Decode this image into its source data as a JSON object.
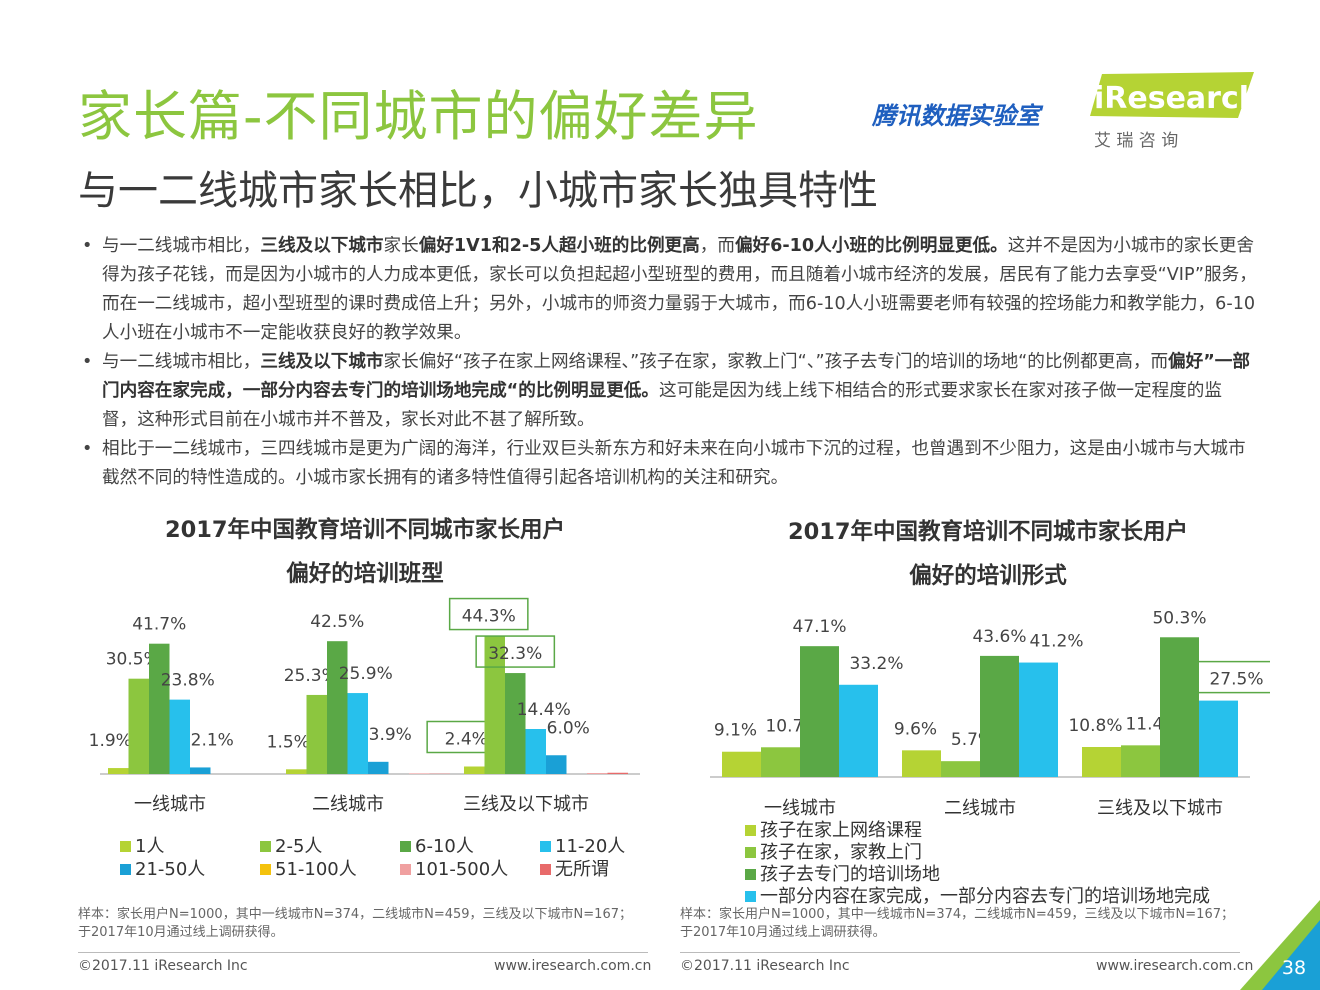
{
  "header": {
    "title": "家长篇-不同城市的偏好差异",
    "subtitle": "与一二线城市家长相比，小城市家长独具特性",
    "partner": "腾讯数据实验室",
    "logo_text": "iResearch",
    "logo_sub": "艾   瑞   咨   询"
  },
  "bullets": [
    {
      "dot": "•",
      "parts": [
        {
          "t": "与一二线城市相比，",
          "b": false
        },
        {
          "t": "三线及以下城市",
          "b": true
        },
        {
          "t": "家长",
          "b": false
        },
        {
          "t": "偏好1V1和2-5人超小班的比例更高",
          "b": true
        },
        {
          "t": "，而",
          "b": false
        },
        {
          "t": "偏好6-10人小班的比例明显更低。",
          "b": true
        },
        {
          "t": "这并不是因为小城市的家长更舍得为孩子花钱，而是因为小城市的人力成本更低，家长可以负担起超小型班型的费用，而且随着小城市经济的发展，居民有了能力去享受“VIP”服务，而在一二线城市，超小型班型的课时费成倍上升；另外，小城市的师资力量弱于大城市，而6-10人小班需要老师有较强的控场能力和教学能力，6-10人小班在小城市不一定能收获良好的教学效果。",
          "b": false
        }
      ]
    },
    {
      "dot": "•",
      "parts": [
        {
          "t": "与一二线城市相比，",
          "b": false
        },
        {
          "t": "三线及以下城市",
          "b": true
        },
        {
          "t": "家长偏好“孩子在家上网络课程、”孩子在家，家教上门“、”孩子去专门的培训的场地“的比例都更高，而",
          "b": false
        },
        {
          "t": "偏好”一部门内容在家完成，一部分内容去专门的培训场地完成“的比例明显更低。",
          "b": true
        },
        {
          "t": "这可能是因为线上线下相结合的形式要求家长在家对孩子做一定程度的监督，这种形式目前在小城市并不普及，家长对此不甚了解所致。",
          "b": false
        }
      ]
    },
    {
      "dot": "•",
      "parts": [
        {
          "t": "相比于一二线城市，三四线城市是更为广阔的海洋，行业双巨头新东方和好未来在向小城市下沉的过程，也曾遇到不少阻力，这是由小城市与大城市截然不同的特性造成的。小城市家长拥有的诸多特性值得引起各培训机构的关注和研究。",
          "b": false
        }
      ]
    }
  ],
  "chart_data": [
    {
      "type": "bar",
      "title": "2017年中国教育培训不同城市家长用户偏好的培训班型",
      "title_lines": [
        "2017年中国教育培训不同城市家长用户",
        "偏好的培训班型"
      ],
      "categories": [
        "一线城市",
        "二线城市",
        "三线及以下城市"
      ],
      "series": [
        {
          "name": "1人",
          "color": "#b5d334",
          "values": [
            1.9,
            1.5,
            2.4
          ],
          "labels": [
            "1.9%",
            "1.5%",
            "2.4%"
          ]
        },
        {
          "name": "2-5人",
          "color": "#8cc63f",
          "values": [
            30.5,
            25.3,
            44.3
          ],
          "labels": [
            "30.5%",
            "25.3%",
            "44.3%"
          ]
        },
        {
          "name": "6-10人",
          "color": "#5aa846",
          "values": [
            41.7,
            42.5,
            32.3
          ],
          "labels": [
            "41.7%",
            "42.5%",
            "32.3%"
          ]
        },
        {
          "name": "11-20人",
          "color": "#27c0ec",
          "values": [
            23.8,
            25.9,
            14.4
          ],
          "labels": [
            "23.8%",
            "25.9%",
            "14.4%"
          ]
        },
        {
          "name": "21-50人",
          "color": "#1aa0d6",
          "values": [
            2.1,
            3.9,
            6.0
          ],
          "labels": [
            "2.1%",
            "3.9%",
            "6.0%"
          ]
        },
        {
          "name": "51-100人",
          "color": "#f4c20d",
          "values": [
            0,
            0,
            0
          ],
          "labels": [
            "",
            "",
            ""
          ]
        },
        {
          "name": "101-500人",
          "color": "#f0a0a0",
          "values": [
            0,
            0.2,
            0.3
          ],
          "labels": [
            "",
            "",
            ""
          ]
        },
        {
          "name": "无所谓",
          "color": "#e86a6a",
          "values": [
            0,
            0.1,
            0.4
          ],
          "labels": [
            "",
            "",
            ""
          ]
        }
      ],
      "highlighted": [
        "1人 · 三线及以下城市",
        "2-5人 · 三线及以下城市",
        "6-10人 · 三线及以下城市"
      ],
      "ylim": [
        0,
        48
      ],
      "legend_position": "bottom",
      "note": "样本：家长用户N=1000，其中一线城市N=374，二线城市N=459，三线及以下城市N=167；于2017年10月通过线上调研获得。"
    },
    {
      "type": "bar",
      "title": "2017年中国教育培训不同城市家长用户偏好的培训形式",
      "title_lines": [
        "2017年中国教育培训不同城市家长用户",
        "偏好的培训形式"
      ],
      "categories": [
        "一线城市",
        "二线城市",
        "三线及以下城市"
      ],
      "series": [
        {
          "name": "孩子在家上网络课程",
          "color": "#b5d334",
          "values": [
            9.1,
            9.6,
            10.8
          ],
          "labels": [
            "9.1%",
            "9.6%",
            "10.8%"
          ]
        },
        {
          "name": "孩子在家，家教上门",
          "color": "#8cc63f",
          "values": [
            10.7,
            5.7,
            11.4
          ],
          "labels": [
            "10.7%",
            "5.7%",
            "11.4%"
          ]
        },
        {
          "name": "孩子去专门的培训场地",
          "color": "#5aa846",
          "values": [
            47.1,
            43.6,
            50.3
          ],
          "labels": [
            "47.1%",
            "43.6%",
            "50.3%"
          ]
        },
        {
          "name": "一部分内容在家完成，一部分内容去专门的培训场地完成",
          "color": "#27c0ec",
          "values": [
            33.2,
            41.2,
            27.5
          ],
          "labels": [
            "33.2%",
            "41.2%",
            "27.5%"
          ]
        }
      ],
      "highlighted": [
        "一部分内容在家完成，一部分内容去专门的培训场地完成 · 三线及以下城市"
      ],
      "ylim": [
        0,
        54
      ],
      "legend_position": "bottom",
      "note": "样本：家长用户N=1000，其中一线城市N=374，二线城市N=459，三线及以下城市N=167；于2017年10月通过线上调研获得。"
    }
  ],
  "footer": {
    "left_copyright": "©2017.11 iResearch Inc",
    "left_url": "www.iresearch.com.cn",
    "right_copyright": "©2017.11 iResearch Inc",
    "right_url": "www.iresearch.com.cn",
    "page_number": "38"
  },
  "colors": {
    "title_green": "#8cc63f",
    "partner_blue": "#1f5fbf",
    "corner_blue": "#1aa0d6",
    "corner_green": "#8cc63f"
  }
}
